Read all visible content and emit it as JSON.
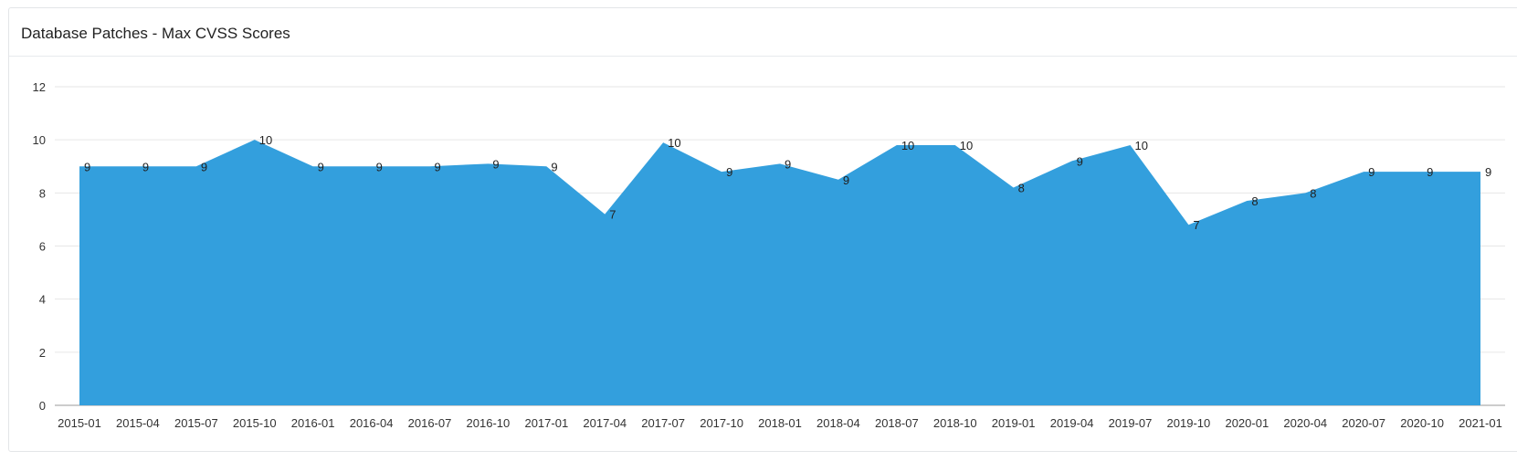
{
  "panel": {
    "title": "Database Patches - Max CVSS Scores"
  },
  "colors": {
    "area": "#339fdd",
    "grid": "#e6e6e6",
    "axis": "#999999"
  },
  "chart_data": {
    "type": "area",
    "title": "Database Patches - Max CVSS Scores",
    "xlabel": "",
    "ylabel": "",
    "ylim": [
      0,
      12
    ],
    "yticks": [
      0,
      2,
      4,
      6,
      8,
      10,
      12
    ],
    "grid": true,
    "x": [
      "2015-01",
      "2015-04",
      "2015-07",
      "2015-10",
      "2016-01",
      "2016-04",
      "2016-07",
      "2016-10",
      "2017-01",
      "2017-04",
      "2017-07",
      "2017-10",
      "2018-01",
      "2018-04",
      "2018-07",
      "2018-10",
      "2019-01",
      "2019-04",
      "2019-07",
      "2019-10",
      "2020-01",
      "2020-04",
      "2020-07",
      "2020-10",
      "2021-01"
    ],
    "values": [
      9.0,
      9.0,
      9.0,
      10.0,
      9.0,
      9.0,
      9.0,
      9.1,
      9.0,
      7.2,
      9.9,
      8.8,
      9.1,
      8.5,
      9.8,
      9.8,
      8.2,
      9.2,
      9.8,
      6.8,
      7.7,
      8.0,
      8.8,
      8.8,
      8.8
    ],
    "data_labels": [
      "9",
      "9",
      "9",
      "10",
      "9",
      "9",
      "9",
      "9",
      "9",
      "7",
      "10",
      "9",
      "9",
      "9",
      "10",
      "10",
      "8",
      "9",
      "10",
      "7",
      "8",
      "8",
      "9",
      "9",
      "9"
    ]
  }
}
